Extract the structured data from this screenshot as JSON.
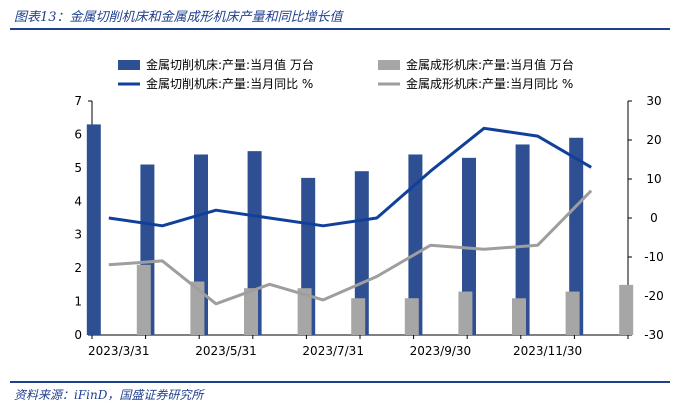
{
  "title": "图表13：金属切削机床和金属成形机床产量和同比增长值",
  "source": "资料来源：iFinD，国盛证券研究所",
  "colors": {
    "bar_a": "#2f4f93",
    "bar_b": "#a6a6a6",
    "line_a": "#11409a",
    "line_b": "#9e9e9e",
    "heading": "#1f3f8f"
  },
  "chart_data": {
    "type": "bar",
    "categories": [
      "2023/3/31",
      "2023/4/30",
      "2023/5/31",
      "2023/6/30",
      "2023/7/31",
      "2023/8/31",
      "2023/9/30",
      "2023/10/31",
      "2023/11/30",
      "2023/12/31"
    ],
    "x_tick_labels": [
      "2023/3/31",
      "",
      "2023/5/31",
      "",
      "2023/7/31",
      "",
      "2023/9/30",
      "",
      "2023/11/30",
      ""
    ],
    "series": [
      {
        "name": "金属切削机床:产量:当月值 万台",
        "kind": "bar",
        "axis": "left",
        "values": [
          6.3,
          5.1,
          5.4,
          5.5,
          4.7,
          4.9,
          5.4,
          5.3,
          5.7,
          5.9
        ]
      },
      {
        "name": "金属成形机床:产量:当月值 万台",
        "kind": "bar",
        "axis": "left",
        "values": [
          2.1,
          1.6,
          1.4,
          1.4,
          1.1,
          1.1,
          1.3,
          1.1,
          1.3,
          1.5
        ]
      },
      {
        "name": "金属切削机床:产量:当月同比 %",
        "kind": "line",
        "axis": "right",
        "values": [
          0,
          -2,
          2,
          0,
          -2,
          0,
          12,
          23,
          21,
          13
        ]
      },
      {
        "name": "金属成形机床:产量:当月同比 %",
        "kind": "line",
        "axis": "right",
        "values": [
          -12,
          -11,
          -22,
          -17,
          -21,
          -15,
          -7,
          -8,
          -7,
          7
        ]
      }
    ],
    "y_left": {
      "min": 0,
      "max": 7,
      "ticks": [
        "0",
        "1",
        "2",
        "3",
        "4",
        "5",
        "6",
        "7"
      ]
    },
    "y_right": {
      "min": -30,
      "max": 30,
      "ticks": [
        "-30",
        "-20",
        "-10",
        "0",
        "10",
        "20",
        "30"
      ]
    },
    "legend_position": "top",
    "grid": false
  }
}
